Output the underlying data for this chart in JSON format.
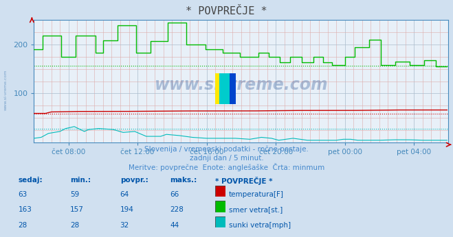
{
  "title": "* POVPREČJE *",
  "bg_color": "#d0e0f0",
  "plot_bg_color": "#e8f0f8",
  "xlim": [
    0,
    288
  ],
  "ylim": [
    0,
    250
  ],
  "yticks": [
    100,
    200
  ],
  "xlabel_ticks": [
    24,
    72,
    120,
    168,
    216,
    264
  ],
  "xlabel_labels": [
    "čet 08:00",
    "čet 12:00",
    "čet 16:00",
    "čet 20:00",
    "pet 00:00",
    "pet 04:00"
  ],
  "subtitle1": "Slovenija / vremenski podatki - ročne postaje.",
  "subtitle2": "zadnji dan / 5 minut.",
  "subtitle3": "Meritve: povprečne  Enote: anglešaške  Črta: minmum",
  "subtitle_color": "#4488cc",
  "watermark": "www.si-vreme.com",
  "temp_color": "#cc0000",
  "wind_dir_color": "#00bb00",
  "wind_gust_color": "#00bbbb",
  "temp_dashed_val": 59,
  "wind_dir_dashed_val": 157,
  "wind_gust_dashed_val": 28,
  "table_headers": [
    "sedaj",
    "min.:",
    "povpr.:",
    "maks.:",
    "* POVPREČJE *"
  ],
  "table_rows": [
    [
      63,
      59,
      64,
      66,
      "temperatura[F]",
      "#cc0000"
    ],
    [
      163,
      157,
      194,
      228,
      "smer vetra[st.]",
      "#00bb00"
    ],
    [
      28,
      28,
      32,
      44,
      "sunki vetra[mph]",
      "#00bbbb"
    ]
  ],
  "table_color": "#0055aa",
  "axis_color": "#4488bb",
  "tick_color": "#4488bb",
  "title_color": "#444444"
}
